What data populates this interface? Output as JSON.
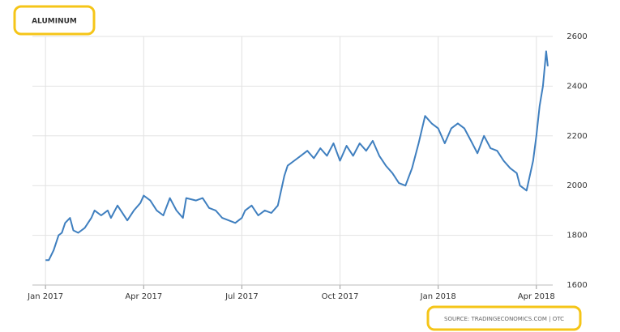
{
  "chart_data": {
    "type": "line",
    "title": "ALUMINUM",
    "source": "SOURCE: TRADINGECONOMICS.COM | OTC",
    "x": [
      0,
      0.1,
      0.25,
      0.4,
      0.5,
      0.6,
      0.75,
      0.85,
      1.0,
      1.2,
      1.4,
      1.5,
      1.7,
      1.9,
      2.0,
      2.2,
      2.5,
      2.7,
      2.9,
      3.0,
      3.2,
      3.4,
      3.6,
      3.8,
      4.0,
      4.2,
      4.3,
      4.6,
      4.8,
      5.0,
      5.2,
      5.4,
      5.6,
      5.8,
      6.0,
      6.1,
      6.3,
      6.5,
      6.7,
      6.9,
      7.1,
      7.3,
      7.4,
      7.6,
      7.8,
      8.0,
      8.2,
      8.4,
      8.6,
      8.8,
      9.0,
      9.2,
      9.4,
      9.6,
      9.8,
      10.0,
      10.2,
      10.4,
      10.6,
      10.8,
      11.0,
      11.2,
      11.4,
      11.6,
      11.8,
      12.0,
      12.2,
      12.4,
      12.6,
      12.8,
      13.0,
      13.2,
      13.4,
      13.6,
      13.8,
      14.0,
      14.2,
      14.4,
      14.5,
      14.7,
      14.9,
      15.0,
      15.1,
      15.2,
      15.3,
      15.35
    ],
    "series": [
      {
        "name": "Aluminum",
        "color": "#3f7fbf",
        "values": [
          1700,
          1700,
          1740,
          1800,
          1810,
          1850,
          1870,
          1820,
          1810,
          1830,
          1870,
          1900,
          1880,
          1900,
          1870,
          1920,
          1860,
          1900,
          1930,
          1960,
          1940,
          1900,
          1880,
          1950,
          1900,
          1870,
          1950,
          1940,
          1950,
          1910,
          1900,
          1870,
          1860,
          1850,
          1870,
          1900,
          1920,
          1880,
          1900,
          1890,
          1920,
          2040,
          2080,
          2100,
          2120,
          2140,
          2110,
          2150,
          2120,
          2170,
          2100,
          2160,
          2120,
          2170,
          2140,
          2180,
          2120,
          2080,
          2050,
          2010,
          2000,
          2070,
          2170,
          2280,
          2250,
          2230,
          2170,
          2230,
          2250,
          2230,
          2180,
          2130,
          2200,
          2150,
          2140,
          2100,
          2070,
          2050,
          2000,
          1980,
          2100,
          2200,
          2320,
          2400,
          2540,
          2480
        ]
      }
    ],
    "xlim": [
      -0.4,
      15.5
    ],
    "xticks": [
      {
        "value": 0,
        "label": "Jan 2017"
      },
      {
        "value": 3,
        "label": "Apr 2017"
      },
      {
        "value": 6,
        "label": "Jul 2017"
      },
      {
        "value": 9,
        "label": "Oct 2017"
      },
      {
        "value": 12,
        "label": "Jan 2018"
      },
      {
        "value": 15,
        "label": "Apr 2018"
      }
    ],
    "ylim": [
      1600,
      2600
    ],
    "yticks": [
      1600,
      1800,
      2000,
      2200,
      2400,
      2600
    ],
    "grid": true
  }
}
